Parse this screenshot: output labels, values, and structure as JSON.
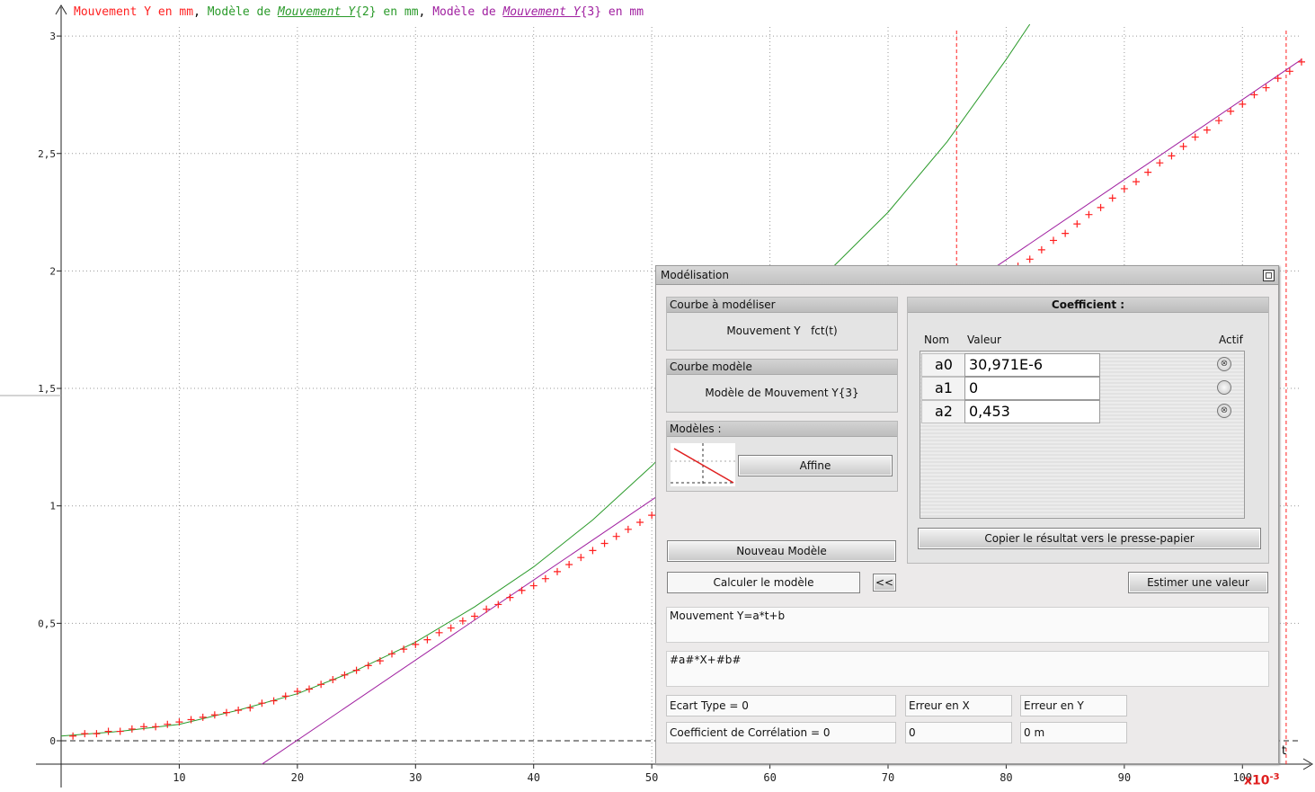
{
  "legend": {
    "series1": "Mouvement Y en mm",
    "sep1": ", ",
    "series2_prefix": "Modèle de ",
    "series2_link": "Mouvement Y",
    "series2_suffix": "{2} en mm",
    "sep2": ", ",
    "series3_prefix": "Modèle de ",
    "series3_link": "Mouvement Y",
    "series3_suffix": "{3} en mm"
  },
  "axis": {
    "x_label": "t",
    "x_multiplier_base": "x10",
    "x_multiplier_exp": "-3"
  },
  "colors": {
    "measured": "#ff2020",
    "model2": "#2a9a2a",
    "model3": "#a020a0",
    "cursor": "#ff2020",
    "multiplier": "#e02020"
  },
  "chart_data": {
    "type": "scatter",
    "x_unit_scale": "x10^-3",
    "xlim": [
      0,
      105
    ],
    "ylim": [
      -0.1,
      3.05
    ],
    "xticks": [
      10,
      20,
      30,
      40,
      50,
      60,
      70,
      80,
      90,
      100
    ],
    "yticks": [
      0,
      0.5,
      1,
      1.5,
      2,
      2.5,
      3
    ],
    "ytick_labels": [
      "0",
      "0,5",
      "1",
      "1,5",
      "2",
      "2,5",
      "3"
    ],
    "grid": true,
    "cursors_x": [
      75.8,
      103.7
    ],
    "baseline_y": 0,
    "series": [
      {
        "name": "Mouvement Y en mm",
        "style": "cross",
        "x": [
          1,
          2,
          3,
          4,
          5,
          6,
          7,
          8,
          9,
          10,
          11,
          12,
          13,
          14,
          15,
          16,
          17,
          18,
          19,
          20,
          21,
          22,
          23,
          24,
          25,
          26,
          27,
          28,
          29,
          30,
          31,
          32,
          33,
          34,
          35,
          36,
          37,
          38,
          39,
          40,
          41,
          42,
          43,
          44,
          45,
          46,
          47,
          48,
          49,
          50,
          51,
          81,
          82,
          83,
          84,
          85,
          86,
          87,
          88,
          89,
          90,
          91,
          92,
          93,
          94,
          95,
          96,
          97,
          98,
          99,
          100,
          101,
          102,
          103,
          104,
          105
        ],
        "y": [
          0.02,
          0.03,
          0.03,
          0.04,
          0.04,
          0.05,
          0.06,
          0.06,
          0.07,
          0.08,
          0.09,
          0.1,
          0.11,
          0.12,
          0.13,
          0.14,
          0.16,
          0.17,
          0.19,
          0.21,
          0.22,
          0.24,
          0.26,
          0.28,
          0.3,
          0.32,
          0.34,
          0.37,
          0.39,
          0.41,
          0.43,
          0.46,
          0.48,
          0.51,
          0.53,
          0.56,
          0.58,
          0.61,
          0.64,
          0.66,
          0.69,
          0.72,
          0.75,
          0.78,
          0.81,
          0.84,
          0.87,
          0.9,
          0.93,
          0.96,
          1.0,
          2.02,
          2.05,
          2.09,
          2.13,
          2.16,
          2.2,
          2.24,
          2.27,
          2.31,
          2.35,
          2.38,
          2.42,
          2.46,
          2.49,
          2.53,
          2.57,
          2.6,
          2.64,
          2.68,
          2.71,
          2.75,
          2.78,
          2.82,
          2.85,
          2.89
        ]
      },
      {
        "name": "Modèle de Mouvement Y{2} en mm",
        "style": "line",
        "x": [
          0,
          5,
          10,
          15,
          20,
          25,
          30,
          35,
          40,
          45,
          50,
          55,
          60,
          65,
          70,
          75,
          80,
          82
        ],
        "y": [
          0.02,
          0.04,
          0.07,
          0.13,
          0.2,
          0.3,
          0.42,
          0.57,
          0.74,
          0.94,
          1.17,
          1.43,
          1.72,
          2.0,
          2.25,
          2.55,
          2.9,
          3.05
        ]
      },
      {
        "name": "Modèle de Mouvement Y{3} en mm",
        "style": "line",
        "x": [
          17,
          105
        ],
        "y": [
          -0.1,
          2.9
        ]
      }
    ]
  },
  "dialog": {
    "title": "Modélisation",
    "courbe_a_modeliser": {
      "header": "Courbe à modéliser",
      "value": "Mouvement Y   fct(t)"
    },
    "courbe_modele": {
      "header": "Courbe modèle",
      "value": "Modèle de Mouvement Y{3}"
    },
    "modeles": {
      "header": "Modèles :",
      "selected": "Affine"
    },
    "coefficient": {
      "header": "Coefficient :",
      "col_nom": "Nom",
      "col_valeur": "Valeur",
      "col_actif": "Actif",
      "rows": [
        {
          "nom": "a0",
          "valeur": "30,971E-6",
          "actif": "⊗"
        },
        {
          "nom": "a1",
          "valeur": "0",
          "actif": ""
        },
        {
          "nom": "a2",
          "valeur": "0,453",
          "actif": "⊗"
        }
      ],
      "copy_button": "Copier le résultat vers le presse-papier"
    },
    "nouveau_modele": "Nouveau Modèle",
    "calculer": "Calculer le modèle",
    "collapse": "<<",
    "estimer": "Estimer une valeur",
    "expression": "Mouvement Y=a*t+b",
    "template": "#a#*X+#b#",
    "ecart_type": "Ecart Type = 0",
    "correlation": "Coefficient de Corrélation = 0",
    "erreur_x_label": "Erreur en X",
    "erreur_y_label": "Erreur en Y",
    "erreur_x_value": "0",
    "erreur_y_value": "0 m"
  }
}
